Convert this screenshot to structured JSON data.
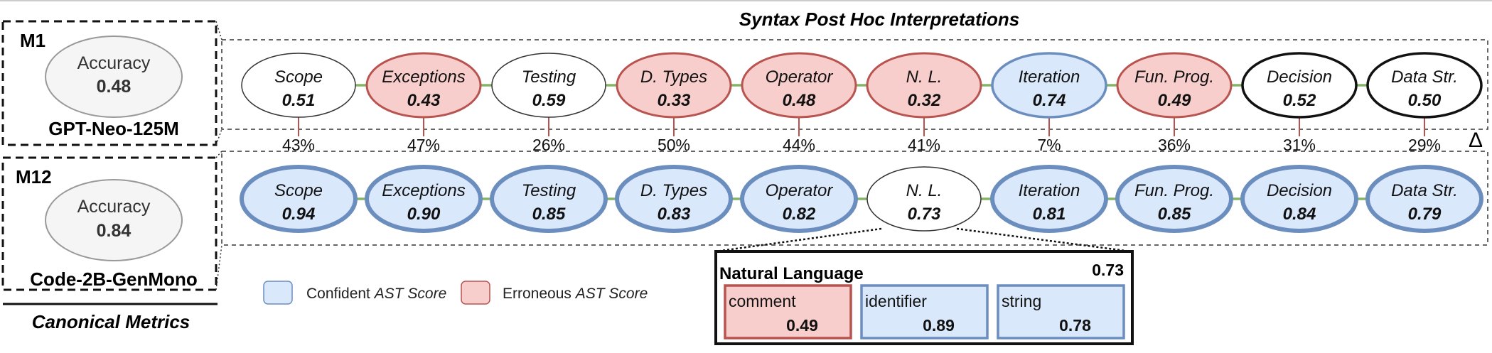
{
  "title": "Syntax Post Hoc Interpretations",
  "delta_symbol": "Δ",
  "models": [
    {
      "id": "M1",
      "metric_label": "Accuracy",
      "metric_value": "0.48",
      "model_name": "GPT-Neo-125M"
    },
    {
      "id": "M12",
      "metric_label": "Accuracy",
      "metric_value": "0.84",
      "model_name": "Code-2B-GenMono"
    }
  ],
  "canonical_label": "Canonical Metrics",
  "categories": [
    "Scope",
    "Exceptions",
    "Testing",
    "D. Types",
    "Operator",
    "N. L.",
    "Iteration",
    "Fun. Prog.",
    "Decision",
    "Data Str."
  ],
  "m1_scores": [
    "0.51",
    "0.43",
    "0.59",
    "0.33",
    "0.48",
    "0.32",
    "0.74",
    "0.49",
    "0.52",
    "0.50"
  ],
  "m1_states": [
    "neutral",
    "erroneous",
    "neutral",
    "erroneous",
    "erroneous",
    "erroneous",
    "confident",
    "erroneous",
    "neutral-bold",
    "neutral-bold"
  ],
  "m12_scores": [
    "0.94",
    "0.90",
    "0.85",
    "0.83",
    "0.82",
    "0.73",
    "0.81",
    "0.85",
    "0.84",
    "0.79"
  ],
  "m12_states": [
    "confident",
    "confident",
    "confident",
    "confident",
    "confident",
    "neutral",
    "confident",
    "confident",
    "confident",
    "confident"
  ],
  "deltas": [
    "43%",
    "47%",
    "26%",
    "50%",
    "44%",
    "41%",
    "7%",
    "36%",
    "31%",
    "29%"
  ],
  "legend": {
    "confident_prefix": "Confident ",
    "confident_italic": "AST Score",
    "erroneous_prefix": "Erroneous ",
    "erroneous_italic": "AST Score"
  },
  "detail": {
    "title": "Natural Language",
    "score": "0.73",
    "items": [
      {
        "label": "comment",
        "value": "0.49",
        "state": "erroneous"
      },
      {
        "label": "identifier",
        "value": "0.89",
        "state": "confident"
      },
      {
        "label": "string",
        "value": "0.78",
        "state": "confident"
      }
    ]
  },
  "colors": {
    "confident_fill": "#dae8fc",
    "confident_stroke": "#6c8ebf",
    "erroneous_fill": "#f8cecc",
    "erroneous_stroke": "#b85450",
    "connector": "#82b366",
    "delta_line": "#b85450",
    "metric_fill": "#f5f5f5"
  }
}
